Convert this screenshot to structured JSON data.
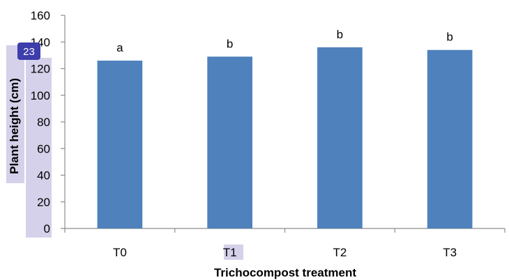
{
  "chart_data": {
    "type": "bar",
    "categories": [
      "T0",
      "T1",
      "T2",
      "T3"
    ],
    "values": [
      126,
      129,
      136,
      134
    ],
    "significance_labels": [
      "a",
      "b",
      "b",
      "b"
    ],
    "title": "",
    "xlabel": "Trichocompost  treatment",
    "ylabel": "Plant height (cm)",
    "ylim": [
      0,
      160
    ],
    "yticks": [
      0,
      20,
      40,
      60,
      80,
      100,
      120,
      140,
      160
    ],
    "bar_color": "#4f81bd",
    "grid": false,
    "legend": "none"
  },
  "overlay": {
    "badge_label": "23",
    "badge_color": "#3d3dab",
    "highlight_color": "#d5d1ea"
  }
}
